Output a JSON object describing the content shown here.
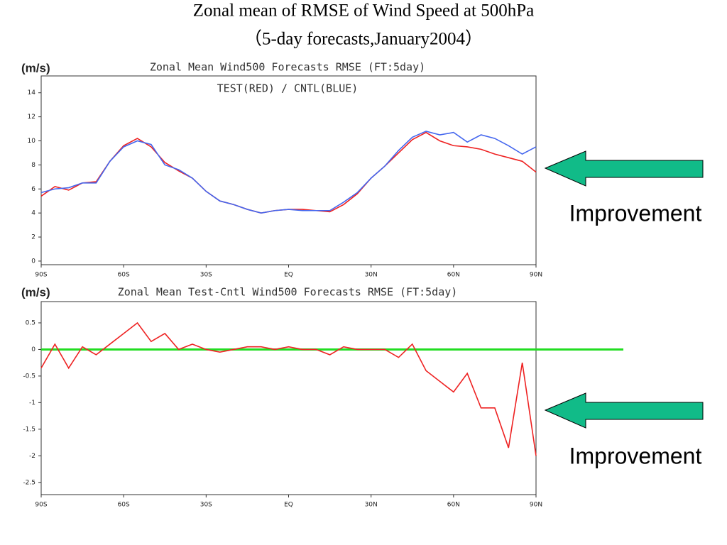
{
  "title": "Zonal mean of RMSE of Wind Speed at 500hPa",
  "subtitle": "（5-day forecasts,January2004）",
  "chart_data": [
    {
      "type": "line",
      "title": "Zonal Mean    Wind500 Forecasts RMSE (FT:5day)",
      "subtitle": "TEST(RED) / CNTL(BLUE)",
      "ylabel": "(m/s)",
      "annotation": "Improvement",
      "x": [
        -90,
        -85,
        -80,
        -75,
        -70,
        -65,
        -60,
        -55,
        -50,
        -45,
        -40,
        -35,
        -30,
        -25,
        -20,
        -15,
        -10,
        -5,
        0,
        5,
        10,
        15,
        20,
        25,
        30,
        35,
        40,
        45,
        50,
        55,
        60,
        65,
        70,
        75,
        80,
        85,
        90
      ],
      "series": [
        {
          "color": "#ee2222",
          "values": [
            5.4,
            6.2,
            5.9,
            6.5,
            6.6,
            8.3,
            9.6,
            10.2,
            9.5,
            8.2,
            7.5,
            6.9,
            5.8,
            5.0,
            4.7,
            4.3,
            4.0,
            4.2,
            4.3,
            4.3,
            4.2,
            4.1,
            4.7,
            5.6,
            6.9,
            7.9,
            9.0,
            10.1,
            10.7,
            10.0,
            9.6,
            9.5,
            9.3,
            8.9,
            8.6,
            8.3,
            7.4
          ]
        },
        {
          "color": "#4466ee",
          "values": [
            5.7,
            6.0,
            6.1,
            6.5,
            6.5,
            8.3,
            9.5,
            10.0,
            9.7,
            8.0,
            7.6,
            6.9,
            5.8,
            5.0,
            4.7,
            4.3,
            4.0,
            4.2,
            4.3,
            4.2,
            4.2,
            4.2,
            4.9,
            5.7,
            6.9,
            7.9,
            9.2,
            10.3,
            10.8,
            10.5,
            10.7,
            9.9,
            10.5,
            10.2,
            9.6,
            8.9,
            9.5
          ]
        }
      ],
      "xlim": [
        -90,
        90
      ],
      "xticks": [
        {
          "value": -90,
          "label": "90S"
        },
        {
          "value": -60,
          "label": "60S"
        },
        {
          "value": -30,
          "label": "30S"
        },
        {
          "value": 0,
          "label": "EQ"
        },
        {
          "value": 30,
          "label": "30N"
        },
        {
          "value": 60,
          "label": "60N"
        },
        {
          "value": 90,
          "label": "90N"
        }
      ],
      "ylim": [
        -0.3,
        15.4
      ],
      "yticks": [
        0,
        2,
        4,
        6,
        8,
        10,
        12,
        14
      ]
    },
    {
      "type": "line",
      "title": "Zonal Mean    Test-Cntl Wind500 Forecasts RMSE (FT:5day)",
      "ylabel": "(m/s)",
      "annotation": "Improvement",
      "reference_line": 0,
      "reference_color": "#22dd22",
      "x": [
        -90,
        -85,
        -80,
        -75,
        -70,
        -65,
        -60,
        -55,
        -50,
        -45,
        -40,
        -35,
        -30,
        -25,
        -20,
        -15,
        -10,
        -5,
        0,
        5,
        10,
        15,
        20,
        25,
        30,
        35,
        40,
        45,
        50,
        55,
        60,
        65,
        70,
        75,
        80,
        85,
        90
      ],
      "series": [
        {
          "color": "#ee2222",
          "values": [
            -0.35,
            0.1,
            -0.35,
            0.05,
            -0.1,
            0.1,
            0.3,
            0.5,
            0.15,
            0.3,
            0.0,
            0.1,
            0.0,
            -0.05,
            0.0,
            0.05,
            0.05,
            0.0,
            0.05,
            0.0,
            0.0,
            -0.1,
            0.05,
            0.0,
            0.0,
            0.0,
            -0.15,
            0.1,
            -0.4,
            -0.6,
            -0.8,
            -0.45,
            -1.1,
            -1.1,
            -1.85,
            -0.25,
            -2.0
          ]
        }
      ],
      "xlim": [
        -90,
        90
      ],
      "xticks": [
        {
          "value": -90,
          "label": "90S"
        },
        {
          "value": -60,
          "label": "60S"
        },
        {
          "value": -30,
          "label": "30S"
        },
        {
          "value": 0,
          "label": "EQ"
        },
        {
          "value": 30,
          "label": "30N"
        },
        {
          "value": 60,
          "label": "60N"
        },
        {
          "value": 90,
          "label": "90N"
        }
      ],
      "ylim": [
        -2.73,
        0.9
      ],
      "yticks": [
        0.5,
        0,
        -0.5,
        -1,
        -1.5,
        -2,
        -2.5
      ]
    }
  ]
}
